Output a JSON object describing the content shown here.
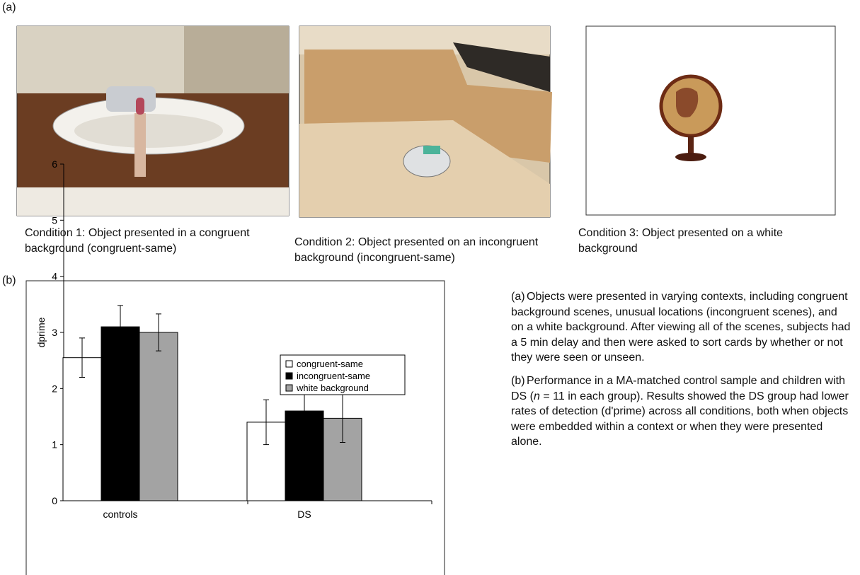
{
  "figure_label_a": "(a)",
  "figure_label_b": "(b)",
  "captions": [
    "Condition 1: Object presented in a congruent background (congruent-same)",
    "Condition 2: Object presented on an incongruent background (incongruent-same)",
    "Condition 3: Object presented on a white background"
  ],
  "notes": [
    {
      "label": "(a)",
      "parts": [
        "Objects were presented in varying contexts, including congruent background scenes, unusual locations (incongruent scenes), and on a white background. After viewing all of the scenes, subjects had a  5 min delay and then were asked to sort cards by whether or not they were seen or unseen."
      ]
    },
    {
      "label": "(b)",
      "parts": [
        "Performance in a MA-matched control sample and children with DS (",
        "n",
        " = 11 in each group). Results showed the DS group had lower rates of detection (d'prime) across all conditions, both when objects were embedded within a context or when they were presented alone."
      ]
    }
  ],
  "chart_data": {
    "type": "bar",
    "ylabel": "dprime",
    "categories": [
      "controls",
      "DS"
    ],
    "series": [
      {
        "name": "congruent-same",
        "color": "#ffffff",
        "values": [
          2.55,
          1.4
        ],
        "errors": [
          0.35,
          0.4
        ]
      },
      {
        "name": "incongruent-same",
        "color": "#000000",
        "values": [
          3.1,
          1.6
        ],
        "errors": [
          0.38,
          0.5
        ]
      },
      {
        "name": "white background",
        "color": "#a3a3a3",
        "values": [
          3.0,
          1.47
        ],
        "errors": [
          0.33,
          0.43
        ]
      }
    ],
    "ylim": [
      0,
      6
    ],
    "yticks": [
      0,
      1,
      2,
      3,
      4,
      5,
      6
    ],
    "legend": "upper right"
  }
}
